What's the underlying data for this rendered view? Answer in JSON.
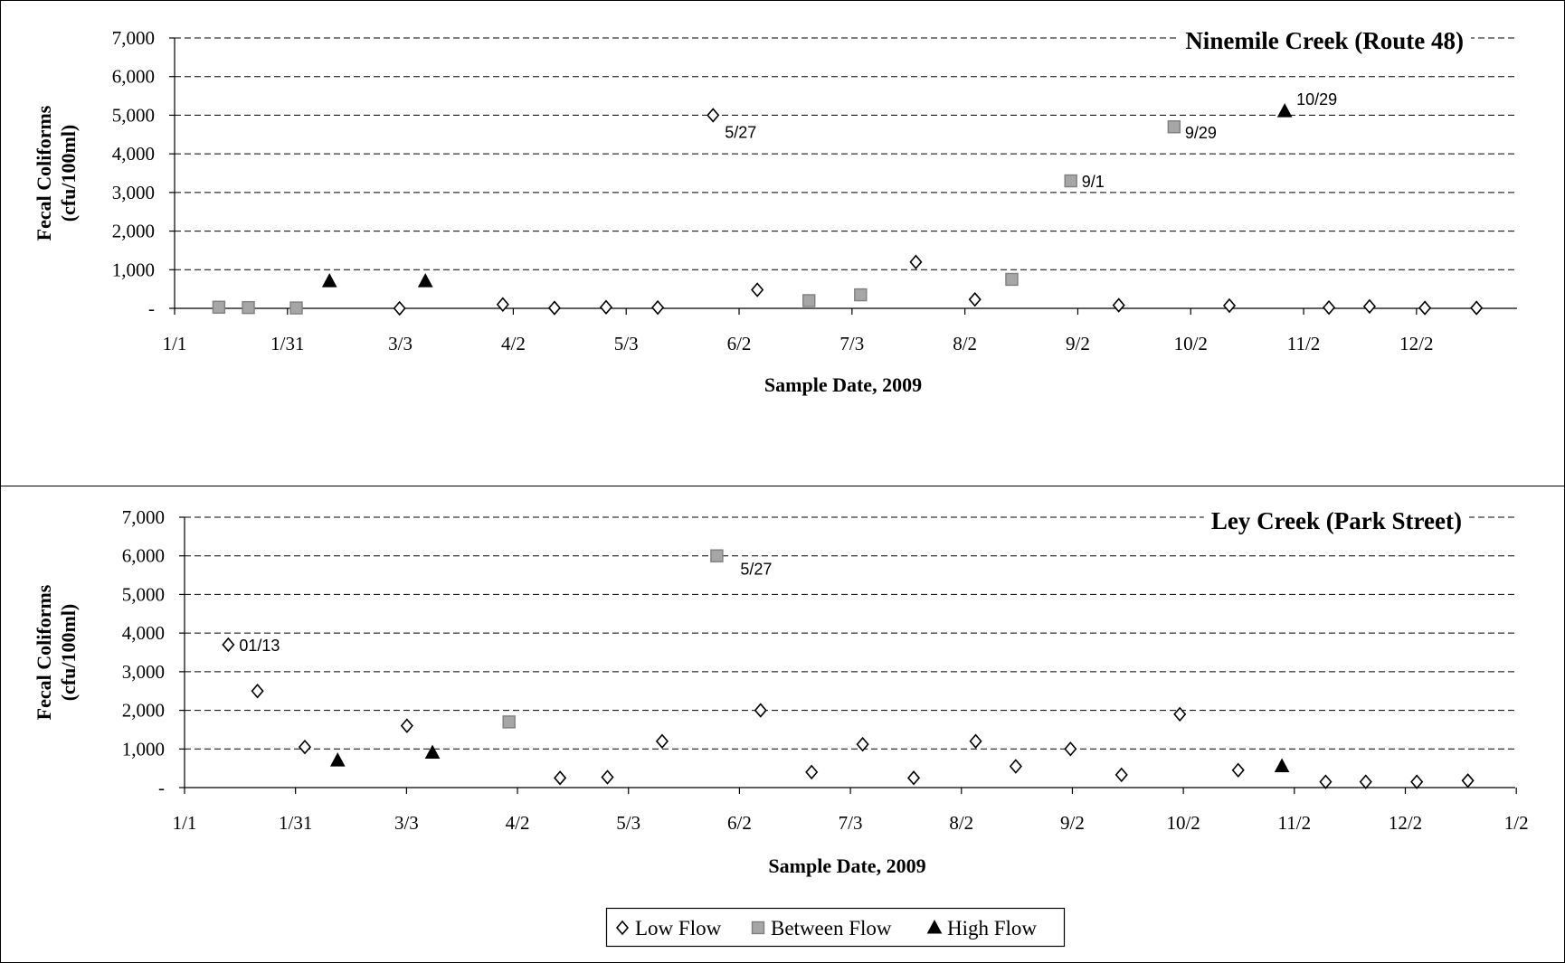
{
  "legend": {
    "items": [
      {
        "label": "Low Flow",
        "marker": "diamond"
      },
      {
        "label": "Between Flow",
        "marker": "square"
      },
      {
        "label": "High Flow",
        "marker": "triangle"
      }
    ]
  },
  "colors": {
    "low_flow_fill": "#ffffff",
    "between_flow_fill": "#a6a6a6",
    "high_flow_fill": "#000000",
    "axis": "#000000",
    "grid": "#000000"
  },
  "chart_data": [
    {
      "type": "scatter",
      "title": "Ninemile Creek (Route 48)",
      "xlabel": "Sample Date, 2009",
      "ylabel": "Fecal Coliforms",
      "ylabel_unit": "(cfu/100ml)",
      "ylim": [
        0,
        7000
      ],
      "xlim": [
        "2009-01-01",
        "2009-12-31"
      ],
      "grid": "horizontal dashed",
      "x_ticks": [
        "1/1",
        "1/31",
        "3/3",
        "4/2",
        "5/3",
        "6/2",
        "7/3",
        "8/2",
        "9/2",
        "10/2",
        "11/2",
        "12/2"
      ],
      "y_ticks": [
        "-",
        "1,000",
        "2,000",
        "3,000",
        "4,000",
        "5,000",
        "6,000",
        "7,000"
      ],
      "series": [
        {
          "name": "Low Flow",
          "marker": "diamond",
          "points": [
            {
              "x": "2009-03-03",
              "y": 0
            },
            {
              "x": "2009-03-31",
              "y": 100
            },
            {
              "x": "2009-04-14",
              "y": 10
            },
            {
              "x": "2009-04-28",
              "y": 30
            },
            {
              "x": "2009-05-12",
              "y": 20
            },
            {
              "x": "2009-05-27",
              "y": 5000,
              "label": "5/27"
            },
            {
              "x": "2009-06-08",
              "y": 480
            },
            {
              "x": "2009-07-21",
              "y": 1200
            },
            {
              "x": "2009-08-06",
              "y": 230
            },
            {
              "x": "2009-09-14",
              "y": 80
            },
            {
              "x": "2009-10-14",
              "y": 70
            },
            {
              "x": "2009-11-10",
              "y": 20
            },
            {
              "x": "2009-11-21",
              "y": 50
            },
            {
              "x": "2009-12-06",
              "y": 10
            },
            {
              "x": "2009-12-20",
              "y": 10
            }
          ]
        },
        {
          "name": "Between Flow",
          "marker": "square",
          "points": [
            {
              "x": "2009-01-13",
              "y": 30
            },
            {
              "x": "2009-01-21",
              "y": 20
            },
            {
              "x": "2009-02-03",
              "y": 10
            },
            {
              "x": "2009-06-22",
              "y": 200
            },
            {
              "x": "2009-07-06",
              "y": 350
            },
            {
              "x": "2009-08-16",
              "y": 750
            },
            {
              "x": "2009-09-01",
              "y": 3300,
              "label": "9/1"
            },
            {
              "x": "2009-09-29",
              "y": 4700,
              "label": "9/29"
            }
          ]
        },
        {
          "name": "High Flow",
          "marker": "triangle",
          "points": [
            {
              "x": "2009-02-12",
              "y": 700
            },
            {
              "x": "2009-03-10",
              "y": 700
            },
            {
              "x": "2009-10-29",
              "y": 5100,
              "label": "10/29"
            }
          ]
        }
      ]
    },
    {
      "type": "scatter",
      "title": "Ley Creek (Park Street)",
      "xlabel": "Sample Date, 2009",
      "ylabel": "Fecal Coliforms",
      "ylabel_unit": "(cfu/100ml)",
      "ylim": [
        0,
        7000
      ],
      "xlim": [
        "2009-01-01",
        "2010-01-01"
      ],
      "grid": "horizontal dashed",
      "x_ticks": [
        "1/1",
        "1/31",
        "3/3",
        "4/2",
        "5/3",
        "6/2",
        "7/3",
        "8/2",
        "9/2",
        "10/2",
        "11/2",
        "12/2",
        "1/2"
      ],
      "y_ticks": [
        "-",
        "1,000",
        "2,000",
        "3,000",
        "4,000",
        "5,000",
        "6,000",
        "7,000"
      ],
      "series": [
        {
          "name": "Low Flow",
          "marker": "diamond",
          "points": [
            {
              "x": "2009-01-13",
              "y": 3700,
              "label": "01/13"
            },
            {
              "x": "2009-01-21",
              "y": 2500
            },
            {
              "x": "2009-02-03",
              "y": 1050
            },
            {
              "x": "2009-03-03",
              "y": 1600
            },
            {
              "x": "2009-04-14",
              "y": 250
            },
            {
              "x": "2009-04-27",
              "y": 270
            },
            {
              "x": "2009-05-12",
              "y": 1200
            },
            {
              "x": "2009-06-08",
              "y": 2000
            },
            {
              "x": "2009-06-22",
              "y": 400
            },
            {
              "x": "2009-07-06",
              "y": 1120
            },
            {
              "x": "2009-07-20",
              "y": 250
            },
            {
              "x": "2009-08-06",
              "y": 1200
            },
            {
              "x": "2009-08-17",
              "y": 550
            },
            {
              "x": "2009-09-01",
              "y": 1000
            },
            {
              "x": "2009-09-15",
              "y": 330
            },
            {
              "x": "2009-10-01",
              "y": 1900
            },
            {
              "x": "2009-10-17",
              "y": 450
            },
            {
              "x": "2009-11-10",
              "y": 150
            },
            {
              "x": "2009-11-21",
              "y": 150
            },
            {
              "x": "2009-12-05",
              "y": 150
            },
            {
              "x": "2009-12-19",
              "y": 180
            }
          ]
        },
        {
          "name": "Between Flow",
          "marker": "square",
          "points": [
            {
              "x": "2009-03-31",
              "y": 1700
            },
            {
              "x": "2009-05-27",
              "y": 6000,
              "label": "5/27"
            }
          ]
        },
        {
          "name": "High Flow",
          "marker": "triangle",
          "points": [
            {
              "x": "2009-02-12",
              "y": 700
            },
            {
              "x": "2009-03-10",
              "y": 900
            },
            {
              "x": "2009-10-29",
              "y": 550
            }
          ]
        }
      ]
    }
  ]
}
